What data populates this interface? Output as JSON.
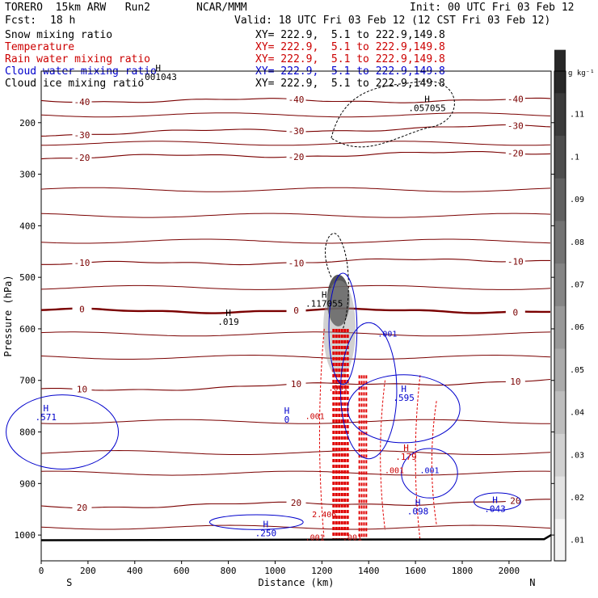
{
  "header": {
    "model": "TORERO  15km ARW   Run2",
    "org": "NCAR/MMM",
    "init": "Init: 00 UTC Fri 03 Feb 12",
    "fcst_label": "Fcst:",
    "fcst_value": "18 h",
    "valid": "Valid: 18 UTC Fri 03 Feb 12 (12 CST Fri 03 Feb 12)"
  },
  "fields": [
    {
      "name": "Snow mixing ratio",
      "xy": "XY= 222.9,  5.1 to 222.9,149.8",
      "color": "#000000"
    },
    {
      "name": "Temperature",
      "xy": "XY= 222.9,  5.1 to 222.9,149.8",
      "color": "#cc0000"
    },
    {
      "name": "Rain water mixing ratio",
      "xy": "XY= 222.9,  5.1 to 222.9,149.8",
      "color": "#cc0000"
    },
    {
      "name": "Cloud water mixing ratio",
      "xy": "XY= 222.9,  5.1 to 222.9,149.8",
      "color": "#0000cc"
    },
    {
      "name": "Cloud ice mixing ratio",
      "xy": "XY= 222.9,  5.1 to 222.9,149.8",
      "color": "#000000"
    }
  ],
  "chart_data": {
    "type": "contour cross-section",
    "xlabel": "Distance (km)",
    "ylabel": "Pressure (hPa)",
    "xlim": [
      0,
      2180
    ],
    "ylim": [
      1050,
      100
    ],
    "x_ticks": [
      0,
      200,
      400,
      600,
      800,
      1000,
      1200,
      1400,
      1600,
      1800,
      2000
    ],
    "y_ticks": [
      200,
      300,
      400,
      500,
      600,
      700,
      800,
      900,
      1000
    ],
    "end_labels": {
      "left": "S",
      "right": "N"
    },
    "colorbar": {
      "unit": "g kg⁻¹",
      "ticks": [
        ".01",
        ".02",
        ".03",
        ".04",
        ".05",
        ".06",
        ".07",
        ".08",
        ".09",
        ".1",
        ".11"
      ]
    },
    "temperature_lines": [
      {
        "label": "-40",
        "p": 157,
        "slope": 0
      },
      {
        "label": "-30",
        "p": 222,
        "slope": 0.015
      },
      {
        "label": "-20",
        "p": 268,
        "slope": 0.01
      },
      {
        "label": "-10",
        "p": 475,
        "slope": 0.01
      },
      {
        "label": "0",
        "p": 565,
        "slope": 0
      },
      {
        "label": "10",
        "p": 720,
        "slope": 0.02
      },
      {
        "label": "20",
        "p": 945,
        "slope": 0.01
      }
    ],
    "maxima": [
      {
        "tag": "H",
        "value": ".001043",
        "x": 500,
        "p": 100,
        "color": "#000000"
      },
      {
        "tag": "H",
        "value": ".057055",
        "x": 1650,
        "p": 160,
        "color": "#000000"
      },
      {
        "tag": "H",
        "value": ".117055",
        "x": 1210,
        "p": 540,
        "color": "#000000"
      },
      {
        "tag": "H",
        "value": ".019",
        "x": 800,
        "p": 575,
        "color": "#000000"
      },
      {
        "tag": "H",
        "value": ".571",
        "x": 20,
        "p": 760,
        "color": "#0000cc"
      },
      {
        "tag": "H",
        "value": "0",
        "x": 1050,
        "p": 765,
        "color": "#0000cc"
      },
      {
        "tag": "H",
        "value": ".595",
        "x": 1550,
        "p": 722,
        "color": "#0000cc"
      },
      {
        "tag": "H",
        "value": ".179",
        "x": 1560,
        "p": 837,
        "color": "#cc0000"
      },
      {
        "tag": "H",
        "value": ".250",
        "x": 960,
        "p": 985,
        "color": "#0000cc"
      },
      {
        "tag": "H",
        "value": ".098",
        "x": 1610,
        "p": 943,
        "color": "#0000cc"
      },
      {
        "tag": "H",
        "value": ".043",
        "x": 1940,
        "p": 938,
        "color": "#0000cc"
      }
    ],
    "small_labels": [
      {
        "text": ".001",
        "x": 1480,
        "p": 615,
        "color": "#0000cc"
      },
      {
        "text": ".001",
        "x": 1270,
        "p": 720,
        "color": "#cc0000"
      },
      {
        "text": ".001",
        "x": 1170,
        "p": 775,
        "color": "#cc0000"
      },
      {
        "text": ".001",
        "x": 1660,
        "p": 880,
        "color": "#0000cc"
      },
      {
        "text": ".001",
        "x": 1510,
        "p": 880,
        "color": "#cc0000"
      },
      {
        "text": "2.406",
        "x": 1210,
        "p": 965,
        "color": "#cc0000"
      },
      {
        "text": ".001",
        "x": 1170,
        "p": 1010,
        "color": "#cc0000"
      },
      {
        "text": ".001",
        "x": 1330,
        "p": 1010,
        "color": "#cc0000"
      }
    ]
  }
}
